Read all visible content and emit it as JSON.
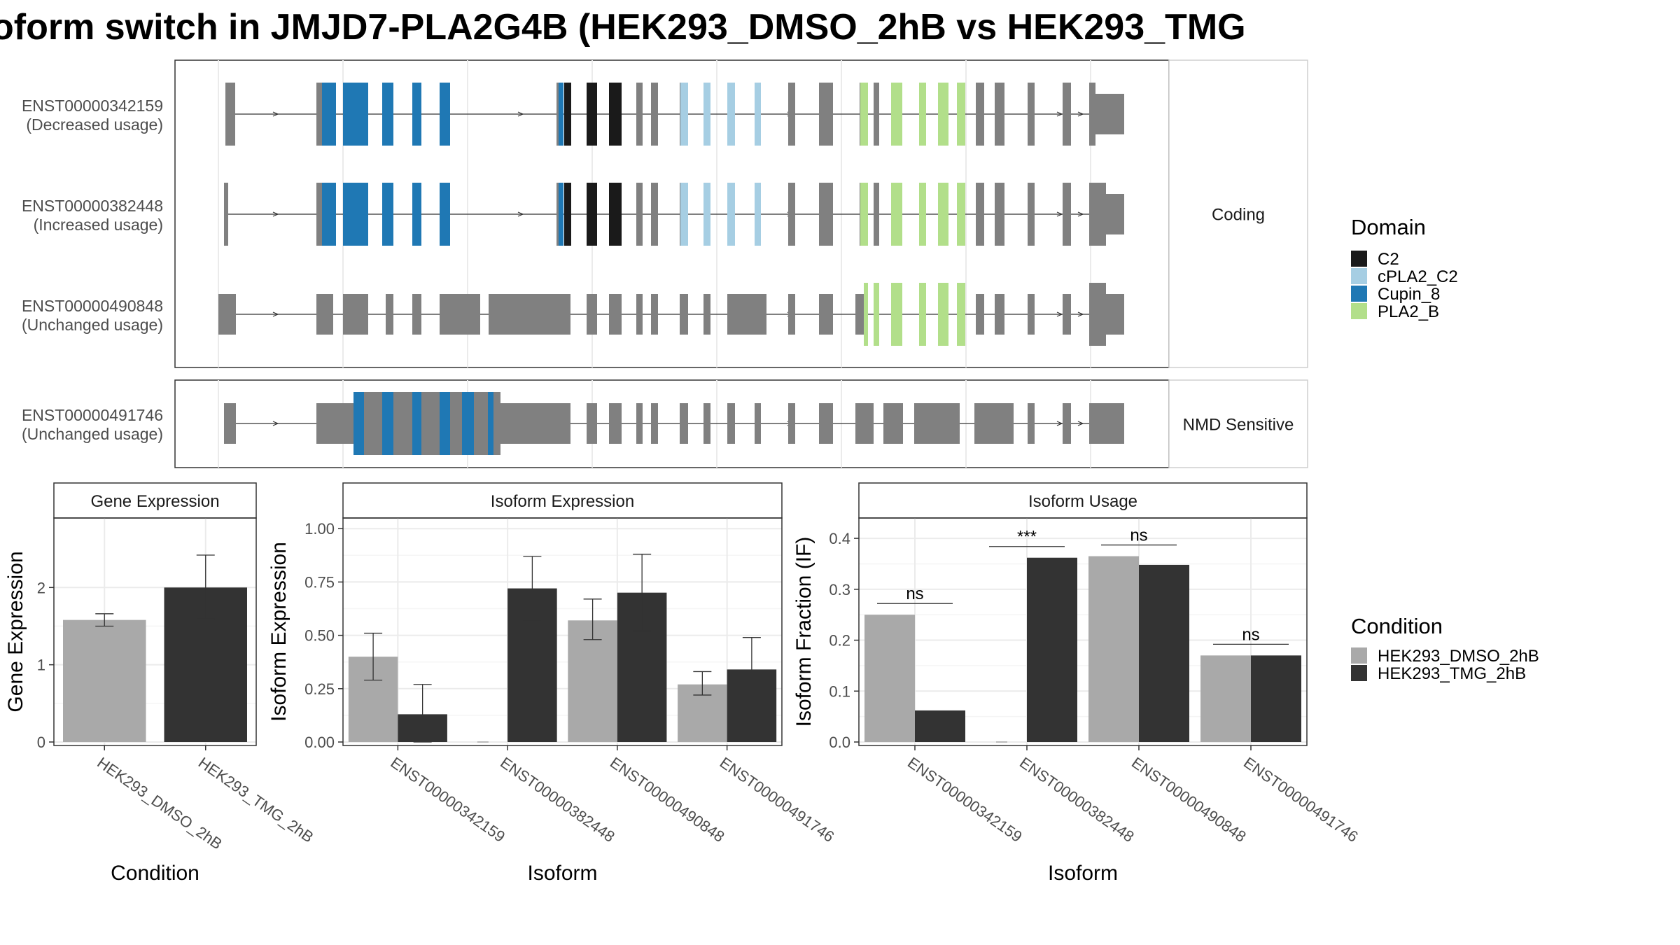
{
  "title": "oform switch in JMJD7-PLA2G4B (HEK293_DMSO_2hB vs HEK293_TMG",
  "colors": {
    "exon": "#808080",
    "C2": "#1a1a1a",
    "cPLA2_C2": "#a6cee3",
    "Cupin_8": "#1f78b4",
    "PLA2_B": "#b2df8a",
    "dmso": "#a9a9a9",
    "tmg": "#333333"
  },
  "transcript_panels": [
    {
      "label": "Coding",
      "transcripts": [
        {
          "id": "ENST00000342159",
          "usage": "(Decreased usage)",
          "style": "coding_a"
        },
        {
          "id": "ENST00000382448",
          "usage": "(Increased usage)",
          "style": "coding_b"
        },
        {
          "id": "ENST00000490848",
          "usage": "(Unchanged usage)",
          "style": "coding_c"
        }
      ]
    },
    {
      "label": "NMD Sensitive",
      "transcripts": [
        {
          "id": "ENST00000491746",
          "usage": "(Unchanged usage)",
          "style": "nmd"
        }
      ]
    }
  ],
  "domain_legend": {
    "title": "Domain",
    "items": [
      {
        "name": "C2",
        "color": "#1a1a1a"
      },
      {
        "name": "cPLA2_C2",
        "color": "#a6cee3"
      },
      {
        "name": "Cupin_8",
        "color": "#1f78b4"
      },
      {
        "name": "PLA2_B",
        "color": "#b2df8a"
      }
    ]
  },
  "condition_legend": {
    "title": "Condition",
    "items": [
      {
        "name": "HEK293_DMSO_2hB",
        "color": "#a9a9a9"
      },
      {
        "name": "HEK293_TMG_2hB",
        "color": "#333333"
      }
    ]
  },
  "chart_data": [
    {
      "type": "bar",
      "title": "Gene Expression",
      "xlabel": "Condition",
      "ylabel": "Gene Expression",
      "ylim": [
        0,
        2.9
      ],
      "yticks": [
        0,
        1,
        2
      ],
      "categories": [
        "HEK293_DMSO_2hB",
        "HEK293_TMG_2hB"
      ],
      "values": [
        1.58,
        2.0
      ],
      "errors": [
        [
          1.5,
          1.66
        ],
        [
          1.59,
          2.42
        ]
      ]
    },
    {
      "type": "bar",
      "title": "Isoform Expression",
      "xlabel": "Isoform",
      "ylabel": "Isoform Expression",
      "ylim": [
        0,
        1.05
      ],
      "yticks": [
        0.0,
        0.25,
        0.5,
        0.75,
        1.0
      ],
      "tick_labels": [
        "0.00",
        "0.25",
        "0.50",
        "0.75",
        "1.00"
      ],
      "categories": [
        "ENST00000342159",
        "ENST00000382448",
        "ENST00000490848",
        "ENST00000491746"
      ],
      "series": [
        {
          "name": "HEK293_DMSO_2hB",
          "values": [
            0.4,
            0.0,
            0.57,
            0.27
          ],
          "errors": [
            [
              0.29,
              0.51
            ],
            [
              0.0,
              0.0
            ],
            [
              0.48,
              0.67
            ],
            [
              0.22,
              0.33
            ]
          ]
        },
        {
          "name": "HEK293_TMG_2hB",
          "values": [
            0.13,
            0.72,
            0.7,
            0.34
          ],
          "errors": [
            [
              0.0,
              0.27
            ],
            [
              0.57,
              0.87
            ],
            [
              0.52,
              0.88
            ],
            [
              0.18,
              0.49
            ]
          ]
        }
      ]
    },
    {
      "type": "bar",
      "title": "Isoform Usage",
      "xlabel": "Isoform",
      "ylabel": "Isoform Fraction (IF)",
      "ylim": [
        0,
        0.44
      ],
      "yticks": [
        0.0,
        0.1,
        0.2,
        0.3,
        0.4
      ],
      "tick_labels": [
        "0.0",
        "0.1",
        "0.2",
        "0.3",
        "0.4"
      ],
      "categories": [
        "ENST00000342159",
        "ENST00000382448",
        "ENST00000490848",
        "ENST00000491746"
      ],
      "series": [
        {
          "name": "HEK293_DMSO_2hB",
          "values": [
            0.25,
            0.0,
            0.365,
            0.17
          ]
        },
        {
          "name": "HEK293_TMG_2hB",
          "values": [
            0.062,
            0.362,
            0.348,
            0.17
          ]
        }
      ],
      "significance": [
        "ns",
        "***",
        "ns",
        "ns"
      ]
    }
  ]
}
